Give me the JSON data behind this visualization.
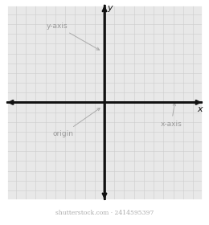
{
  "background_color": "#e8e8e8",
  "grid_color": "#cccccc",
  "axis_color": "#111111",
  "label_color": "#999999",
  "annotation_line_color": "#aaaaaa",
  "grid_linewidth": 0.4,
  "axis_linewidth": 1.8,
  "xlim": [
    -10,
    10
  ],
  "ylim": [
    -10,
    10
  ],
  "grid_step": 1,
  "x_label": "x",
  "y_label": "y",
  "label_yaxis": "y-axis",
  "label_xaxis": "x-axis",
  "label_origin": "origin",
  "label_fontsize": 6.5,
  "axis_label_fontsize": 8,
  "watermark": "shutterstock.com · 2414595397",
  "watermark_fontsize": 5.5,
  "fig_bg": "#ffffff",
  "border_color": "#ffffff",
  "arrow_mutation_scale": 8
}
